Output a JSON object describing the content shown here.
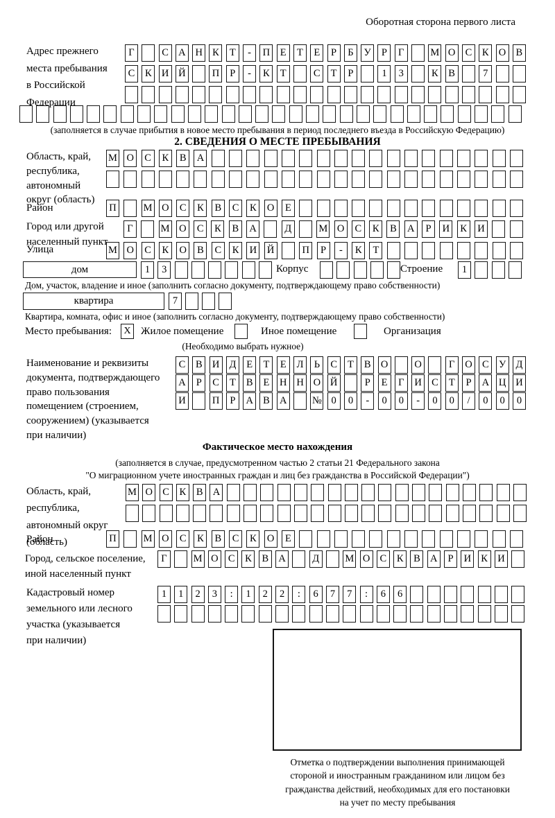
{
  "page": {
    "header_note": "Оборотная сторона первого листа"
  },
  "prev_address": {
    "label_lines": [
      "Адрес прежнего",
      "места пребывания",
      "в Российской",
      "Федерации"
    ],
    "rows": [
      "Г САНКТ-ПЕТЕРБУРГ МОСКОВ",
      "СКИЙ ПР-КТ СТР 13 КВ 7  ",
      "                        "
    ],
    "full_row": "                              ",
    "note": "(заполняется в случае прибытия в новое место пребывания в период последнего въезда в Российскую Федерацию)"
  },
  "section2": {
    "title": "2. СВЕДЕНИЯ О МЕСТЕ ПРЕБЫВАНИЯ",
    "region": {
      "label_lines": [
        "Область, край,",
        "республика,",
        "автономный",
        "округ (область)"
      ],
      "rows": [
        "МОСКВА                  ",
        "                        "
      ]
    },
    "district": {
      "label": "Район",
      "row": "П МОСКВСКОЕ             "
    },
    "city": {
      "label_lines": [
        "Город или другой",
        "населенный пункт"
      ],
      "row": "Г МОСКВА Д МОСКВАРИКИ  "
    },
    "street": {
      "label": "Улица",
      "row": "МОСКОВСКИЙ ПР-КТ        "
    },
    "house": {
      "field_label": "дом",
      "cells": "13      ",
      "korpus_label": "Корпус",
      "korpus_cells": "     ",
      "stroenie_label": "Строение",
      "stroenie_cells": "1   ",
      "note": "Дом, участок, владение и иное (заполнить согласно документу, подтверждающему право собственности)"
    },
    "apartment": {
      "field_label": "квартира",
      "cells": "7   ",
      "note": "Квартира, комната, офис и иное (заполнить согласно документу, подтверждающему право собственности)"
    },
    "stay_type": {
      "label": "Место пребывания:",
      "opt1_mark": "X",
      "opt1_label": "Жилое помещение",
      "opt2_mark": "",
      "opt2_label": "Иное помещение",
      "opt3_mark": "",
      "opt3_label": "Организация",
      "note": "(Необходимо выбрать нужное)"
    },
    "document": {
      "label_lines": [
        "Наименование и реквизиты",
        "документа, подтверждающего",
        "право пользования",
        "помещением (строением,",
        "сооружением) (указывается",
        "при наличии)"
      ],
      "rows": [
        "СВИДЕТЕЛЬСТВО О ГОСУД",
        "АРСТВЕННОЙ РЕГИСТРАЦИ",
        "И ПРАВА №00-00-00/000"
      ]
    }
  },
  "actual_location": {
    "title": "Фактическое место нахождения",
    "note_lines": [
      "(заполняется в случае, предусмотренном частью 2 статьи 21 Федерального закона",
      "\"О миграционном учете иностранных граждан и лиц без гражданства в Российской Федерации\")"
    ],
    "region": {
      "label_lines": [
        "Область, край,",
        "республика,",
        "автономный округ",
        "(область)"
      ],
      "rows": [
        "МОСКВА                  ",
        "                        "
      ]
    },
    "district": {
      "label": "Район",
      "row": "П МОСКВСКОЕ             "
    },
    "city": {
      "label_lines": [
        "Город, сельское поселение,",
        "иной населенный пункт"
      ],
      "row": "Г МОСКВА Д МОСКВАРИКИ "
    },
    "cadastral": {
      "label_lines": [
        "Кадастровый номер",
        "земельного или лесного",
        "участка (указывается",
        "при наличии)"
      ],
      "rows": [
        "1123:122:677:66       ",
        "                      "
      ]
    },
    "stamp_note_lines": [
      "Отметка о подтверждении выполнения принимающей",
      "стороной и иностранным гражданином или лицом без",
      "гражданства действий, необходимых для его постановки",
      "на учет по месту пребывания"
    ]
  }
}
